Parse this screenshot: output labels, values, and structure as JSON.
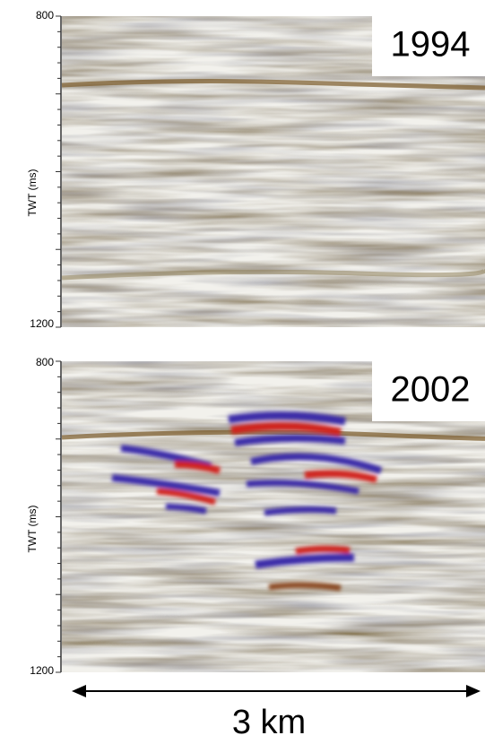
{
  "panels": [
    {
      "year": "1994",
      "axis_label": "TWT (ms)",
      "ticks": [
        800,
        1200
      ]
    },
    {
      "year": "2002",
      "axis_label": "TWT (ms)",
      "ticks": [
        800,
        1200
      ]
    }
  ],
  "scale_label": "3 km"
}
